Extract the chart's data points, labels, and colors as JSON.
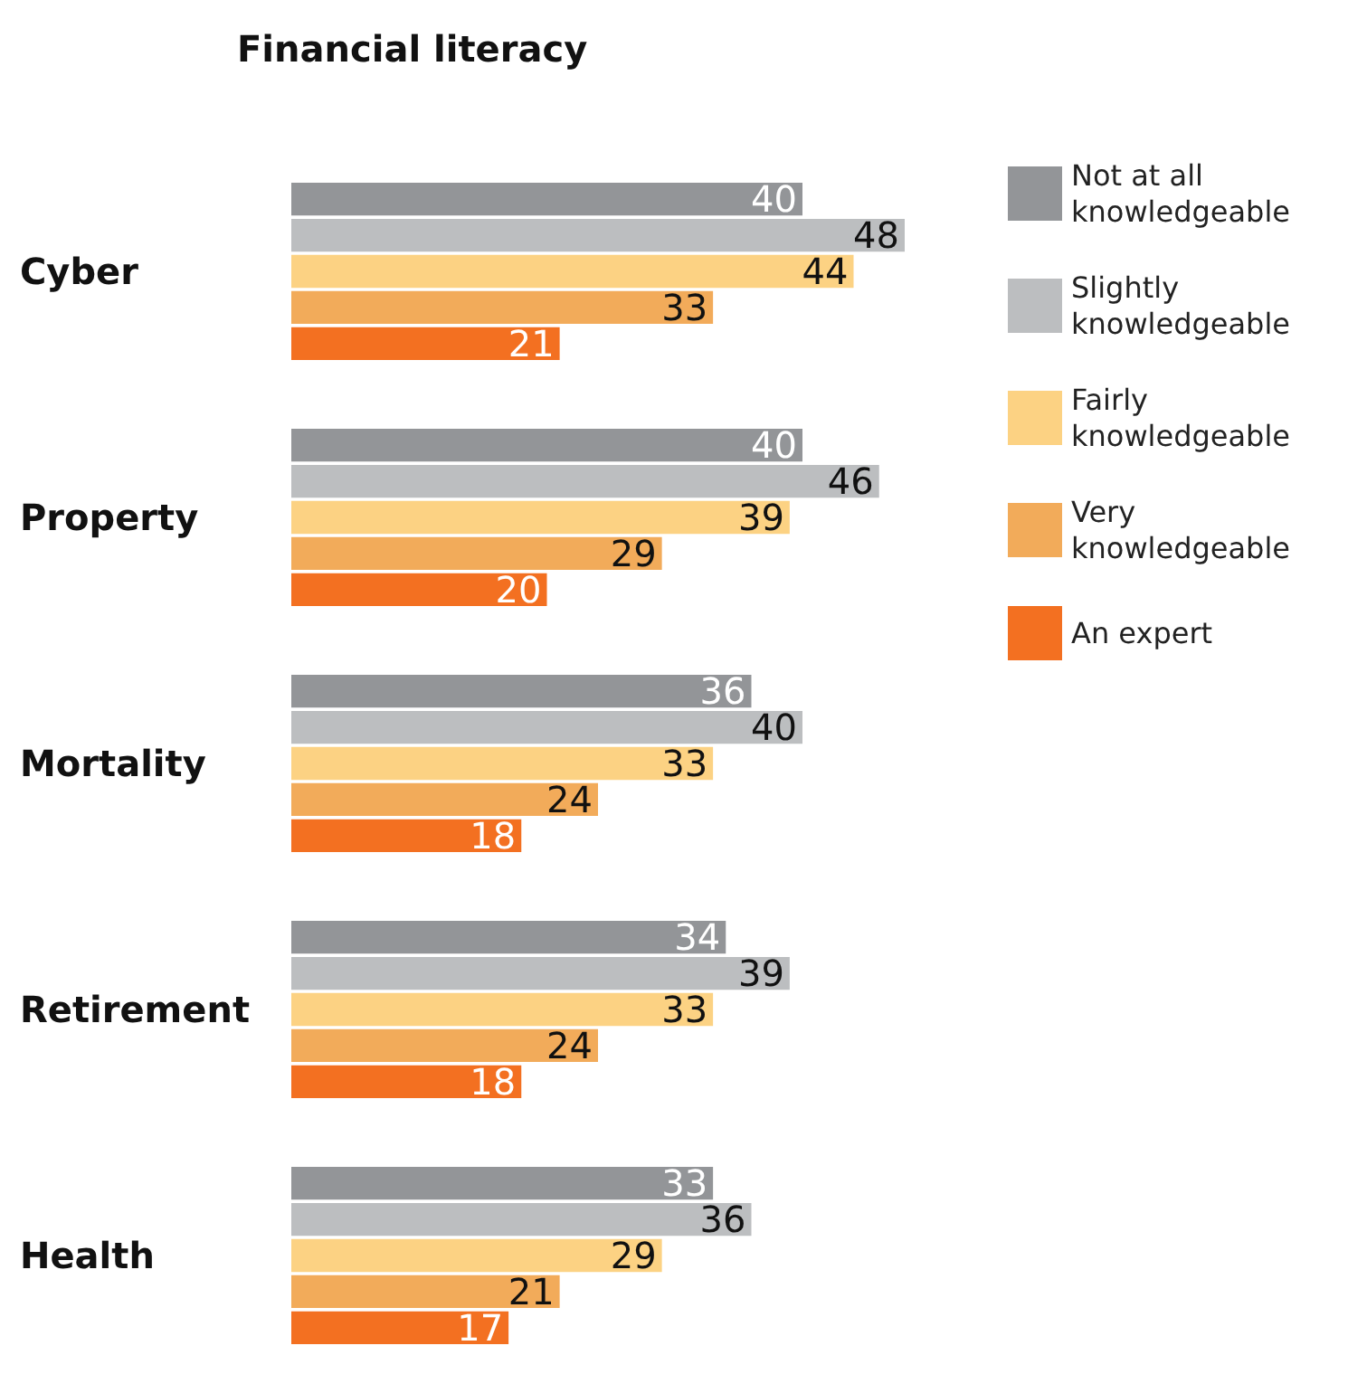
{
  "chart_data": {
    "type": "bar",
    "orientation": "horizontal",
    "title": "Financial literacy",
    "categories": [
      "Cyber",
      "Property",
      "Mortality",
      "Retirement",
      "Health"
    ],
    "series": [
      {
        "name": "Not at all knowledgeable",
        "color": "#939598",
        "values": [
          40,
          40,
          36,
          34,
          33
        ]
      },
      {
        "name": "Slightly knowledgeable",
        "color": "#bcbec0",
        "values": [
          48,
          46,
          40,
          39,
          36
        ]
      },
      {
        "name": "Fairly knowledgeable",
        "color": "#fcd283",
        "values": [
          44,
          39,
          33,
          33,
          29
        ]
      },
      {
        "name": "Very knowledgeable",
        "color": "#f2ab5a",
        "values": [
          33,
          29,
          24,
          24,
          21
        ]
      },
      {
        "name": "An expert",
        "color": "#f37021",
        "values": [
          21,
          20,
          18,
          18,
          17
        ]
      }
    ],
    "data_labels": true,
    "legend": "top right",
    "tick_labels": "y"
  }
}
